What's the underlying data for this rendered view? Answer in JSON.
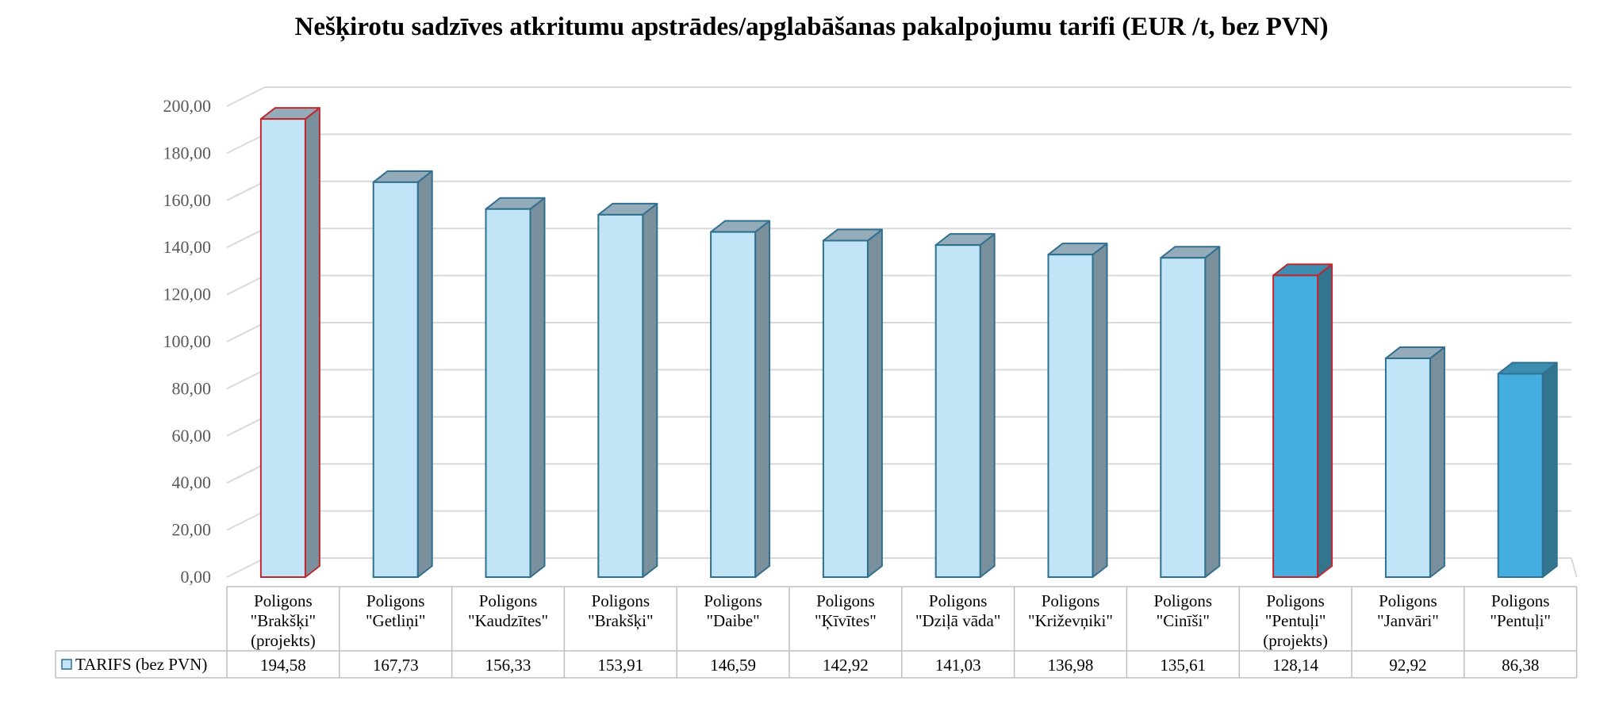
{
  "chart_data": {
    "type": "bar",
    "title": "Nešķirotu sadzīves atkritumu apstrādes/apglabāšanas pakalpojumu tarifi (EUR /t, bez PVN)",
    "xlabel": "",
    "ylabel": "",
    "ylim": [
      0,
      200
    ],
    "yticks": [
      "0,00",
      "20,00",
      "40,00",
      "60,00",
      "80,00",
      "100,00",
      "120,00",
      "140,00",
      "160,00",
      "180,00",
      "200,00"
    ],
    "grid": true,
    "legend_placement": "bottom-left data table",
    "categories": [
      [
        "Poligons",
        "\"Brakšķi\"",
        "(projekts)"
      ],
      [
        "Poligons",
        "\"Getliņi\""
      ],
      [
        "Poligons",
        "\"Kaudzītes\""
      ],
      [
        "Poligons",
        "\"Brakšķi\""
      ],
      [
        "Poligons",
        "\"Daibe\""
      ],
      [
        "Poligons",
        "\"Ķīvītes\""
      ],
      [
        "Poligons",
        "\"Dziļā vāda\""
      ],
      [
        "Poligons",
        "\"Križevņiki\""
      ],
      [
        "Poligons",
        "\"Cinīši\""
      ],
      [
        "Poligons",
        "\"Pentuļi\"",
        "(projekts)"
      ],
      [
        "Poligons",
        "\"Janvāri\""
      ],
      [
        "Poligons",
        "\"Pentuļi\""
      ]
    ],
    "series": [
      {
        "name": "TARIFS (bez PVN)",
        "values": [
          194.58,
          167.73,
          156.33,
          153.91,
          146.59,
          142.92,
          141.03,
          136.98,
          135.61,
          128.14,
          92.92,
          86.38
        ],
        "value_labels": [
          "194,58",
          "167,73",
          "156,33",
          "153,91",
          "146,59",
          "142,92",
          "141,03",
          "136,98",
          "135,61",
          "128,14",
          "92,92",
          "86,38"
        ]
      }
    ],
    "bar_styles": [
      "light-red-outline",
      "light",
      "light",
      "light",
      "light",
      "light",
      "light",
      "light",
      "light",
      "dark-red-outline",
      "light",
      "dark"
    ],
    "colors": {
      "light_front": "#c2e4f7",
      "light_stroke": "#2f6f8f",
      "light_side": "#7a909d",
      "light_top": "#94acba",
      "dark_front": "#44aee0",
      "dark_side": "#33748f",
      "dark_top": "#3d8db0",
      "red_outline": "#c0282d",
      "grid": "#d9d9d9",
      "axis_text": "#595959"
    }
  }
}
